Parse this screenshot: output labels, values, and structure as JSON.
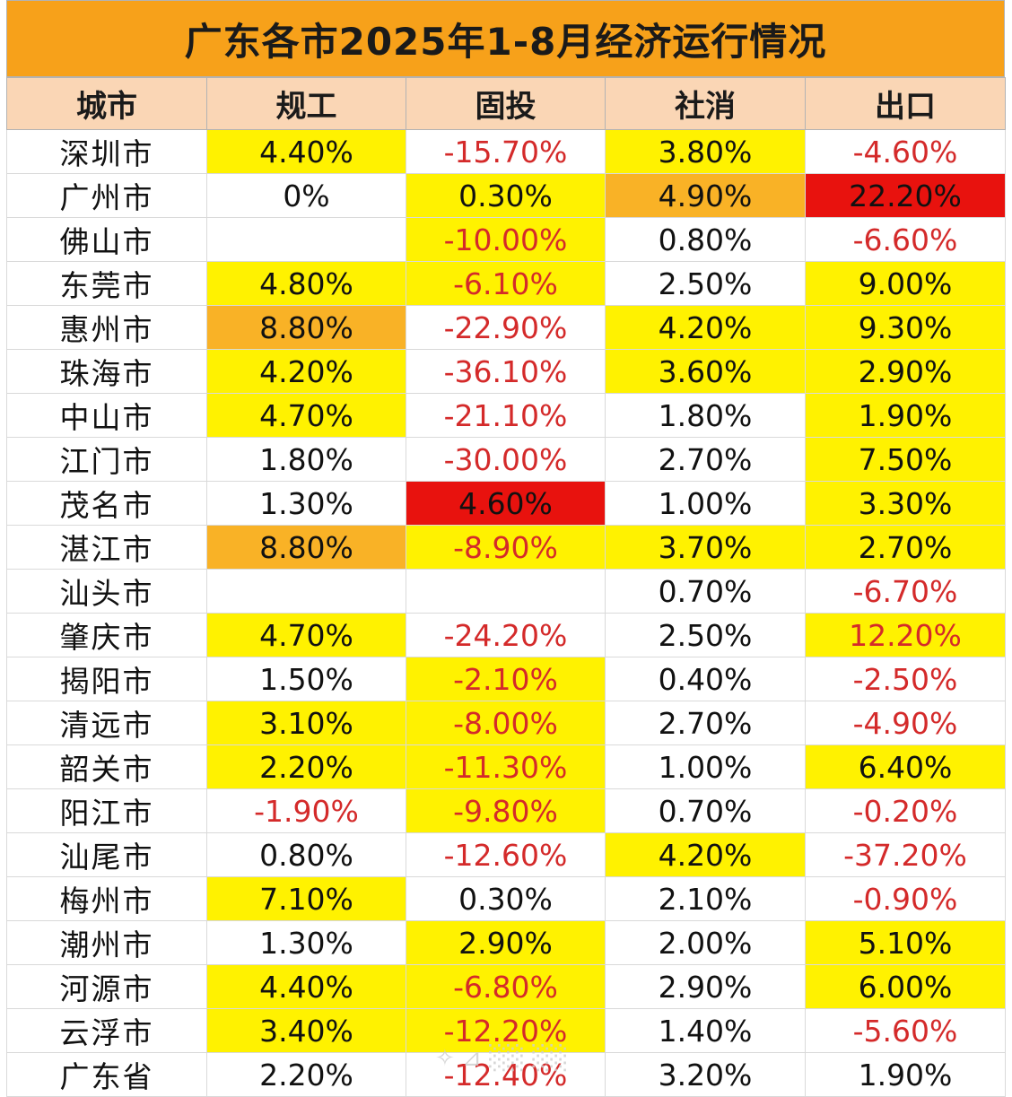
{
  "title": "广东各市2025年1-8月经济运行情况",
  "colors": {
    "title_bg": "#f7a11a",
    "header_bg": "#fad6b5",
    "yellow": "#fff200",
    "orange": "#f9b226",
    "red": "#e8120e",
    "negative_text": "#d42a2a"
  },
  "headers": [
    "城市",
    "规工",
    "固投",
    "社消",
    "出口"
  ],
  "rows": [
    {
      "city": "深圳市",
      "cells": [
        {
          "v": "4.40%",
          "hl": "yel"
        },
        {
          "v": "-15.70%",
          "hl": ""
        },
        {
          "v": "3.80%",
          "hl": "yel"
        },
        {
          "v": "-4.60%",
          "hl": ""
        }
      ]
    },
    {
      "city": "广州市",
      "cells": [
        {
          "v": "0%",
          "hl": ""
        },
        {
          "v": "0.30%",
          "hl": "yel"
        },
        {
          "v": "4.90%",
          "hl": "ora"
        },
        {
          "v": "22.20%",
          "hl": "red"
        }
      ]
    },
    {
      "city": "佛山市",
      "cells": [
        {
          "v": "",
          "hl": ""
        },
        {
          "v": "-10.00%",
          "hl": "yel"
        },
        {
          "v": "0.80%",
          "hl": ""
        },
        {
          "v": "-6.60%",
          "hl": ""
        }
      ]
    },
    {
      "city": "东莞市",
      "cells": [
        {
          "v": "4.80%",
          "hl": "yel"
        },
        {
          "v": "-6.10%",
          "hl": "yel"
        },
        {
          "v": "2.50%",
          "hl": ""
        },
        {
          "v": "9.00%",
          "hl": "yel"
        }
      ]
    },
    {
      "city": "惠州市",
      "cells": [
        {
          "v": "8.80%",
          "hl": "ora"
        },
        {
          "v": "-22.90%",
          "hl": ""
        },
        {
          "v": "4.20%",
          "hl": "yel"
        },
        {
          "v": "9.30%",
          "hl": "yel"
        }
      ]
    },
    {
      "city": "珠海市",
      "cells": [
        {
          "v": "4.20%",
          "hl": "yel"
        },
        {
          "v": "-36.10%",
          "hl": ""
        },
        {
          "v": "3.60%",
          "hl": "yel"
        },
        {
          "v": "2.90%",
          "hl": "yel"
        }
      ]
    },
    {
      "city": "中山市",
      "cells": [
        {
          "v": "4.70%",
          "hl": "yel"
        },
        {
          "v": "-21.10%",
          "hl": ""
        },
        {
          "v": "1.80%",
          "hl": ""
        },
        {
          "v": "1.90%",
          "hl": "yel"
        }
      ]
    },
    {
      "city": "江门市",
      "cells": [
        {
          "v": "1.80%",
          "hl": ""
        },
        {
          "v": "-30.00%",
          "hl": ""
        },
        {
          "v": "2.70%",
          "hl": ""
        },
        {
          "v": "7.50%",
          "hl": "yel"
        }
      ]
    },
    {
      "city": "茂名市",
      "cells": [
        {
          "v": "1.30%",
          "hl": ""
        },
        {
          "v": "4.60%",
          "hl": "red"
        },
        {
          "v": "1.00%",
          "hl": ""
        },
        {
          "v": "3.30%",
          "hl": "yel"
        }
      ]
    },
    {
      "city": "湛江市",
      "cells": [
        {
          "v": "8.80%",
          "hl": "ora"
        },
        {
          "v": "-8.90%",
          "hl": "yel"
        },
        {
          "v": "3.70%",
          "hl": "yel"
        },
        {
          "v": "2.70%",
          "hl": "yel"
        }
      ]
    },
    {
      "city": "汕头市",
      "cells": [
        {
          "v": "",
          "hl": ""
        },
        {
          "v": "",
          "hl": ""
        },
        {
          "v": "0.70%",
          "hl": ""
        },
        {
          "v": "-6.70%",
          "hl": ""
        }
      ]
    },
    {
      "city": "肇庆市",
      "cells": [
        {
          "v": "4.70%",
          "hl": "yel"
        },
        {
          "v": "-24.20%",
          "hl": ""
        },
        {
          "v": "2.50%",
          "hl": ""
        },
        {
          "v": "12.20%",
          "hl": "yel",
          "neg": true
        }
      ]
    },
    {
      "city": "揭阳市",
      "cells": [
        {
          "v": "1.50%",
          "hl": ""
        },
        {
          "v": "-2.10%",
          "hl": "yel"
        },
        {
          "v": "0.40%",
          "hl": ""
        },
        {
          "v": "-2.50%",
          "hl": ""
        }
      ]
    },
    {
      "city": "清远市",
      "cells": [
        {
          "v": "3.10%",
          "hl": "yel"
        },
        {
          "v": "-8.00%",
          "hl": "yel"
        },
        {
          "v": "2.70%",
          "hl": ""
        },
        {
          "v": "-4.90%",
          "hl": ""
        }
      ]
    },
    {
      "city": "韶关市",
      "cells": [
        {
          "v": "2.20%",
          "hl": "yel"
        },
        {
          "v": "-11.30%",
          "hl": "yel"
        },
        {
          "v": "1.00%",
          "hl": ""
        },
        {
          "v": "6.40%",
          "hl": "yel"
        }
      ]
    },
    {
      "city": "阳江市",
      "cells": [
        {
          "v": "-1.90%",
          "hl": ""
        },
        {
          "v": "-9.80%",
          "hl": "yel"
        },
        {
          "v": "0.70%",
          "hl": ""
        },
        {
          "v": "-0.20%",
          "hl": ""
        }
      ]
    },
    {
      "city": "汕尾市",
      "cells": [
        {
          "v": "0.80%",
          "hl": ""
        },
        {
          "v": "-12.60%",
          "hl": ""
        },
        {
          "v": "4.20%",
          "hl": "yel"
        },
        {
          "v": "-37.20%",
          "hl": ""
        }
      ]
    },
    {
      "city": "梅州市",
      "cells": [
        {
          "v": "7.10%",
          "hl": "yel"
        },
        {
          "v": "0.30%",
          "hl": ""
        },
        {
          "v": "2.10%",
          "hl": ""
        },
        {
          "v": "-0.90%",
          "hl": ""
        }
      ]
    },
    {
      "city": "潮州市",
      "cells": [
        {
          "v": "1.30%",
          "hl": ""
        },
        {
          "v": "2.90%",
          "hl": "yel"
        },
        {
          "v": "2.00%",
          "hl": ""
        },
        {
          "v": "5.10%",
          "hl": "yel"
        }
      ]
    },
    {
      "city": "河源市",
      "cells": [
        {
          "v": "4.40%",
          "hl": "yel"
        },
        {
          "v": "-6.80%",
          "hl": "yel"
        },
        {
          "v": "2.90%",
          "hl": ""
        },
        {
          "v": "6.00%",
          "hl": "yel"
        }
      ]
    },
    {
      "city": "云浮市",
      "cells": [
        {
          "v": "3.40%",
          "hl": "yel"
        },
        {
          "v": "-12.20%",
          "hl": "yel"
        },
        {
          "v": "1.40%",
          "hl": ""
        },
        {
          "v": "-5.60%",
          "hl": ""
        }
      ]
    },
    {
      "city": "广东省",
      "cells": [
        {
          "v": "2.20%",
          "hl": ""
        },
        {
          "v": "-12.40%",
          "hl": ""
        },
        {
          "v": "3.20%",
          "hl": ""
        },
        {
          "v": "1.90%",
          "hl": ""
        }
      ]
    }
  ]
}
